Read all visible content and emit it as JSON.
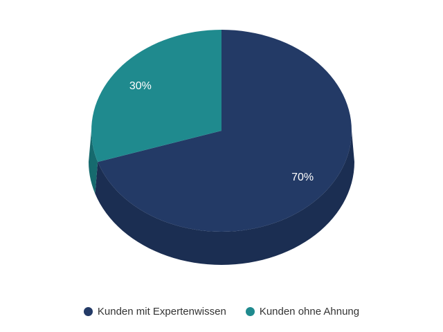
{
  "chart_data": {
    "type": "pie",
    "style": "3d",
    "labels": [
      "Kunden mit Expertenwissen",
      "Kunden ohne Ahnung"
    ],
    "values": [
      70,
      30
    ],
    "value_labels": [
      "70%",
      "30%"
    ],
    "colors": [
      "#233A66",
      "#1F8A8E"
    ],
    "side_colors": [
      "#1B2E52",
      "#166A6E"
    ],
    "value_label_color": "#FFFFFF",
    "start_angle": "top",
    "direction": "clockwise",
    "legend_position": "bottom",
    "legend_text_color": "#333333",
    "background": "#FFFFFF"
  }
}
